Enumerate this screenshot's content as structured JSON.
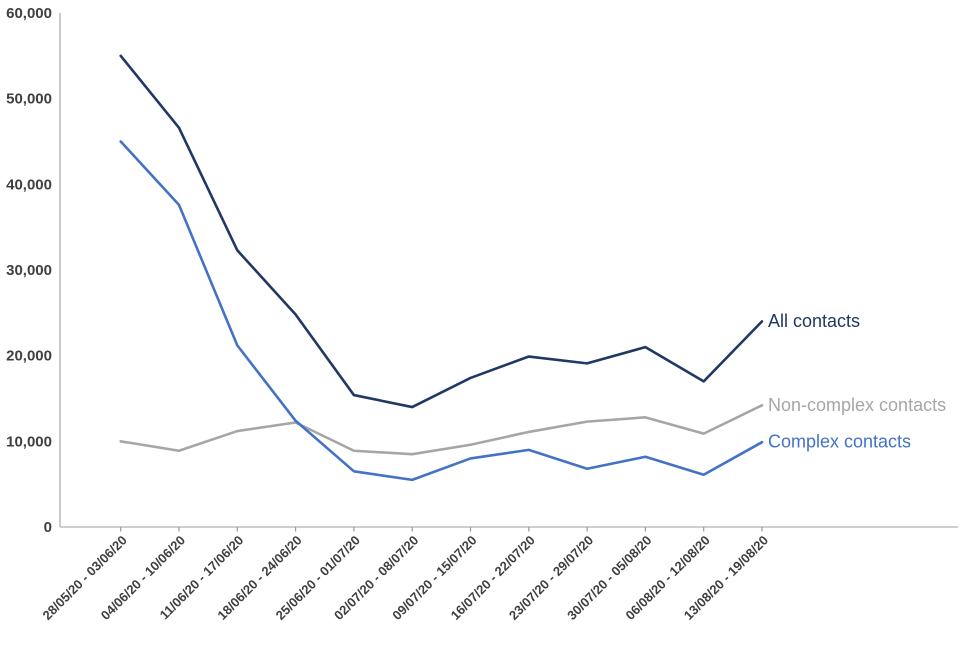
{
  "chart_data": {
    "type": "line",
    "categories": [
      "28/05/20 - 03/06/20",
      "04/06/20 - 10/06/20",
      "11/06/20 - 17/06/20",
      "18/06/20 - 24/06/20",
      "25/06/20 - 01/07/20",
      "02/07/20 - 08/07/20",
      "09/07/20 - 15/07/20",
      "16/07/20 - 22/07/20",
      "23/07/20 - 29/07/20",
      "30/07/20 - 05/08/20",
      "06/08/20 - 12/08/20",
      "13/08/20 - 19/08/20"
    ],
    "series": [
      {
        "name": "All contacts",
        "color": "#1F3864",
        "values": [
          55000,
          46600,
          32300,
          24800,
          15400,
          14000,
          17400,
          19900,
          19100,
          21000,
          17000,
          24000
        ]
      },
      {
        "name": "Non-complex contacts",
        "color": "#A6A6A6",
        "values": [
          10000,
          8900,
          11200,
          12200,
          8900,
          8500,
          9600,
          11100,
          12300,
          12800,
          10900,
          14200
        ]
      },
      {
        "name": "Complex contacts",
        "color": "#4472C4",
        "values": [
          45000,
          37600,
          21200,
          12400,
          6500,
          5500,
          8000,
          9000,
          6800,
          8200,
          6100,
          9900
        ]
      }
    ],
    "y_axis": {
      "min": 0,
      "max": 60000,
      "step": 10000,
      "tick_labels": [
        "0",
        "10,000",
        "20,000",
        "30,000",
        "40,000",
        "50,000",
        "60,000"
      ]
    },
    "x_axis": {
      "label_rotation_deg": -45
    },
    "grid": false,
    "legend_position": "line-end-labels",
    "style": {
      "axis_color": "#BDBDBD",
      "tick_color": "#9A9A9A",
      "text_color": "#3F3F3F",
      "background": "#FFFFFF"
    }
  }
}
